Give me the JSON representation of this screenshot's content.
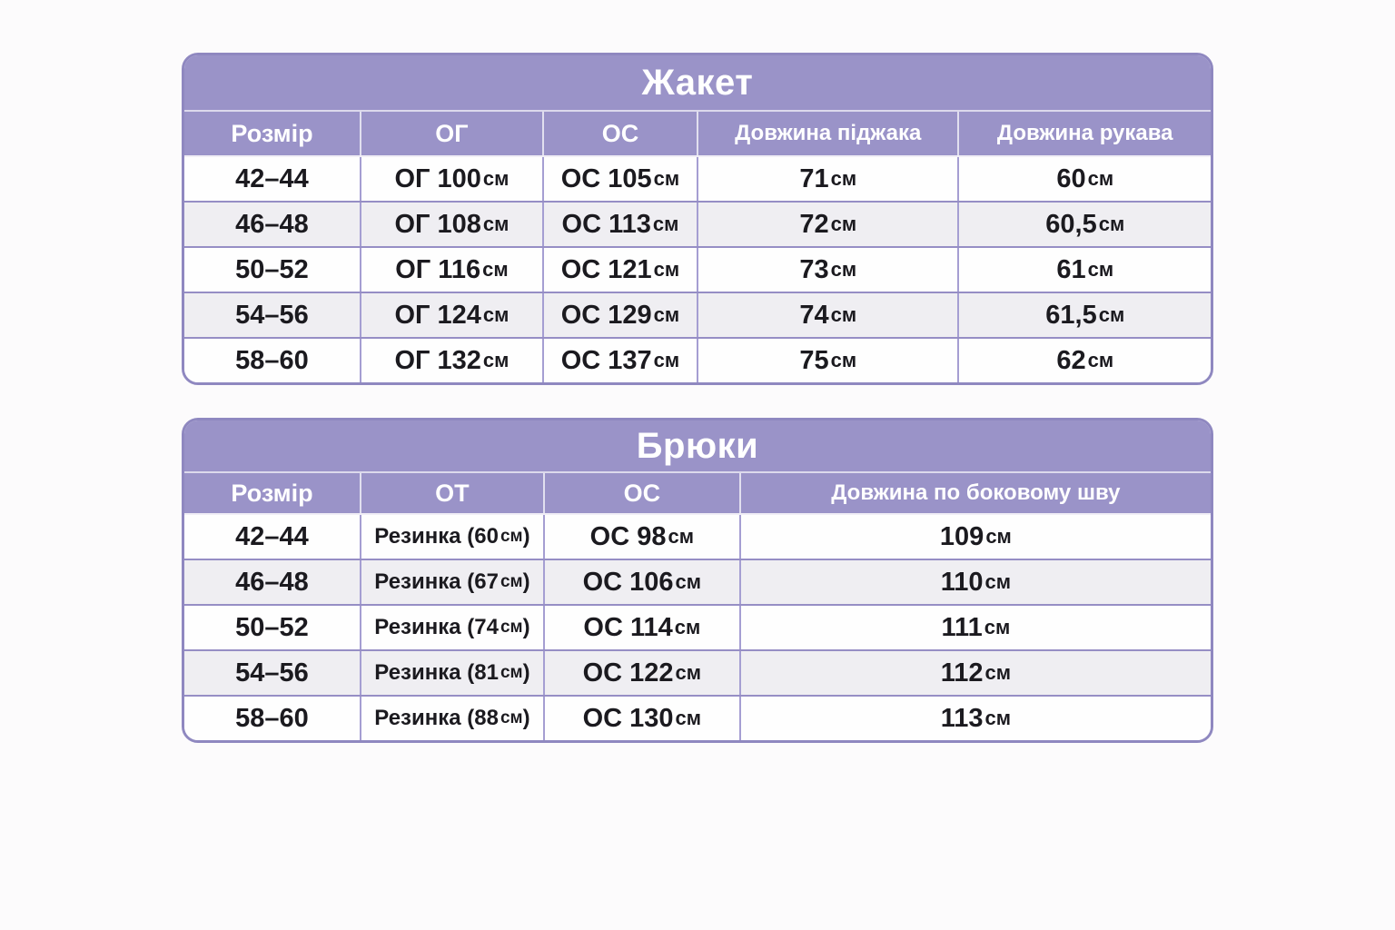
{
  "colors": {
    "header_fill": "#9a93c8",
    "outer_border": "#8f88c0",
    "row_divider": "#968ec5",
    "column_divider": "#a59ed2",
    "alt_row_fill": "#efeef2",
    "row_fill": "#fefefe",
    "header_text": "#ffffff",
    "cell_text": "#1b1a1f",
    "page_background": "#fcfbfc"
  },
  "chart_data": [
    {
      "type": "table",
      "title": "Жакет",
      "columns": [
        "Розмір",
        "ОГ",
        "ОС",
        "Довжина піджака",
        "Довжина рукава"
      ],
      "rows": [
        [
          "42–44",
          "ОГ 100 см",
          "ОС 105 см",
          "71 см",
          "60 см"
        ],
        [
          "46–48",
          "ОГ 108 см",
          "ОС 113 см",
          "72 см",
          "60,5 см"
        ],
        [
          "50–52",
          "ОГ 116 см",
          "ОС 121 см",
          "73 см",
          "61 см"
        ],
        [
          "54–56",
          "ОГ 124 см",
          "ОС 129 см",
          "74 см",
          "61,5 см"
        ],
        [
          "58–60",
          "ОГ 132 см",
          "ОС 137 см",
          "75 см",
          "62 см"
        ]
      ]
    },
    {
      "type": "table",
      "title": "Брюки",
      "columns": [
        "Розмір",
        "ОТ",
        "ОС",
        "Довжина по боковому шву"
      ],
      "rows": [
        [
          "42–44",
          "Резинка (60 см)",
          "ОС 98 см",
          "109 см"
        ],
        [
          "46–48",
          "Резинка (67 см)",
          "ОС 106 см",
          "110 см"
        ],
        [
          "50–52",
          "Резинка (74 см)",
          "ОС 114 см",
          "111 см"
        ],
        [
          "54–56",
          "Резинка (81 см)",
          "ОС 122 см",
          "112 см"
        ],
        [
          "58–60",
          "Резинка (88 см)",
          "ОС 130 см",
          "113 см"
        ]
      ]
    }
  ]
}
